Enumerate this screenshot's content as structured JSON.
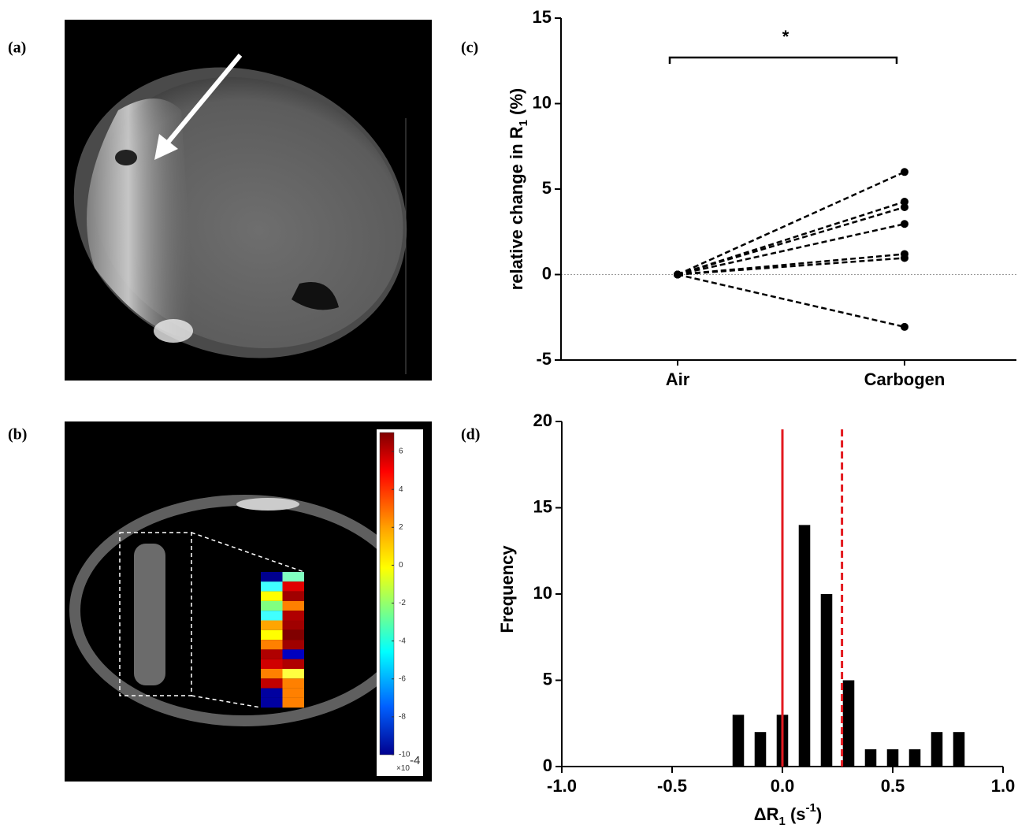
{
  "panel_labels": [
    "(a)",
    "(b)",
    "(c)",
    "(d)"
  ],
  "colorbar": {
    "lim": [
      -10,
      7
    ],
    "ticks": [
      6,
      4,
      2,
      0,
      -2,
      -4,
      -6,
      -8,
      -10
    ],
    "scale_label": [
      "×10",
      "-4"
    ]
  },
  "chart_data": [
    {
      "type": "line",
      "categories": [
        "Air",
        "Carbogen"
      ],
      "series": [
        {
          "color": "#000000",
          "values": [
            0,
            6.0
          ]
        },
        {
          "color": "#000000",
          "values": [
            0,
            4.26
          ]
        },
        {
          "color": "#000000",
          "values": [
            0,
            3.94
          ]
        },
        {
          "color": "#000000",
          "values": [
            0,
            2.96
          ]
        },
        {
          "color": "#000000",
          "values": [
            0,
            1.2
          ]
        },
        {
          "color": "#000000",
          "values": [
            0,
            0.97
          ]
        },
        {
          "color": "#000000",
          "values": [
            0,
            -3.06
          ]
        }
      ],
      "ylim": [
        -5,
        15
      ],
      "yticks": [
        -5,
        0,
        5,
        10,
        15
      ],
      "ylabel": [
        "relative change in R",
        "1",
        " (%)"
      ],
      "annotation": "*",
      "dashed": true,
      "zero_line": true
    },
    {
      "type": "histogram",
      "bins": [
        -0.25,
        -0.15,
        -0.05,
        0.05,
        0.15,
        0.25,
        0.35,
        0.45,
        0.55,
        0.65,
        0.75,
        0.85
      ],
      "counts": [
        3,
        2,
        3,
        14,
        10,
        5,
        1,
        1,
        1,
        2,
        2
      ],
      "color": "#000000",
      "xlim": [
        -1,
        1
      ],
      "xticks": [
        {
          "value": -1,
          "label": "-1.0"
        },
        -0.5,
        {
          "value": 0,
          "label": "0.0"
        },
        0.5,
        {
          "value": 1,
          "label": "1.0"
        }
      ],
      "ylim": [
        0,
        20
      ],
      "yticks": [
        0,
        5,
        10,
        15,
        20
      ],
      "xlabel": [
        "ΔR",
        "1",
        " (s",
        "-1",
        ")"
      ],
      "ylabel": "Frequency",
      "reference_lines": [
        {
          "x": 0,
          "color": "#e3191f",
          "style": "solid"
        },
        {
          "x": 0.27,
          "color": "#e3191f",
          "style": "dashed"
        }
      ]
    }
  ]
}
